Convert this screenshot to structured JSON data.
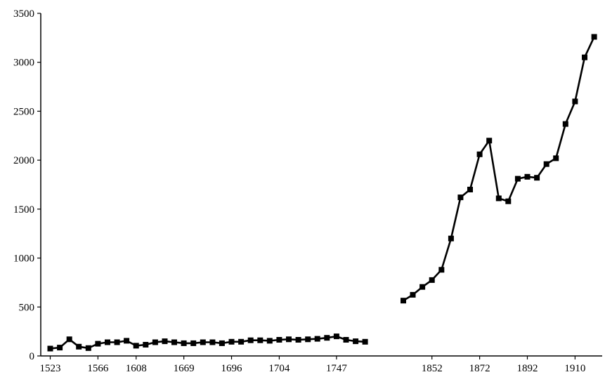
{
  "chart_data": {
    "type": "line",
    "title": "",
    "xlabel": "",
    "ylabel": "",
    "ylim": [
      0,
      3500
    ],
    "yticks": [
      0,
      500,
      1000,
      1500,
      2000,
      2500,
      3000,
      3500
    ],
    "grid": false,
    "legend": "none",
    "line_color": "#000000",
    "x_tick_labels": [
      {
        "index": 0,
        "label": "1523"
      },
      {
        "index": 5,
        "label": "1566"
      },
      {
        "index": 9,
        "label": "1608"
      },
      {
        "index": 14,
        "label": "1669"
      },
      {
        "index": 19,
        "label": "1696"
      },
      {
        "index": 24,
        "label": "1704"
      },
      {
        "index": 30,
        "label": "1747"
      },
      {
        "index": 40,
        "label": "1852"
      },
      {
        "index": 45,
        "label": "1872"
      },
      {
        "index": 50,
        "label": "1892"
      },
      {
        "index": 55,
        "label": "1910"
      }
    ],
    "series": [
      {
        "start_index": 0,
        "values": [
          75,
          85,
          170,
          95,
          80,
          125,
          140,
          140,
          155,
          105,
          115,
          140,
          150,
          140,
          130,
          130,
          140,
          140,
          130,
          145,
          145,
          160,
          160,
          155,
          165,
          170,
          165,
          170,
          175,
          185,
          200,
          165,
          150,
          145
        ]
      },
      {
        "start_index": 37,
        "values": [
          565,
          625,
          705,
          775,
          880,
          1200,
          1620,
          1700,
          2060,
          2200,
          1610,
          1580,
          1810,
          1830,
          1820,
          1960,
          2020,
          2370,
          2600,
          3050,
          3260
        ]
      }
    ]
  }
}
